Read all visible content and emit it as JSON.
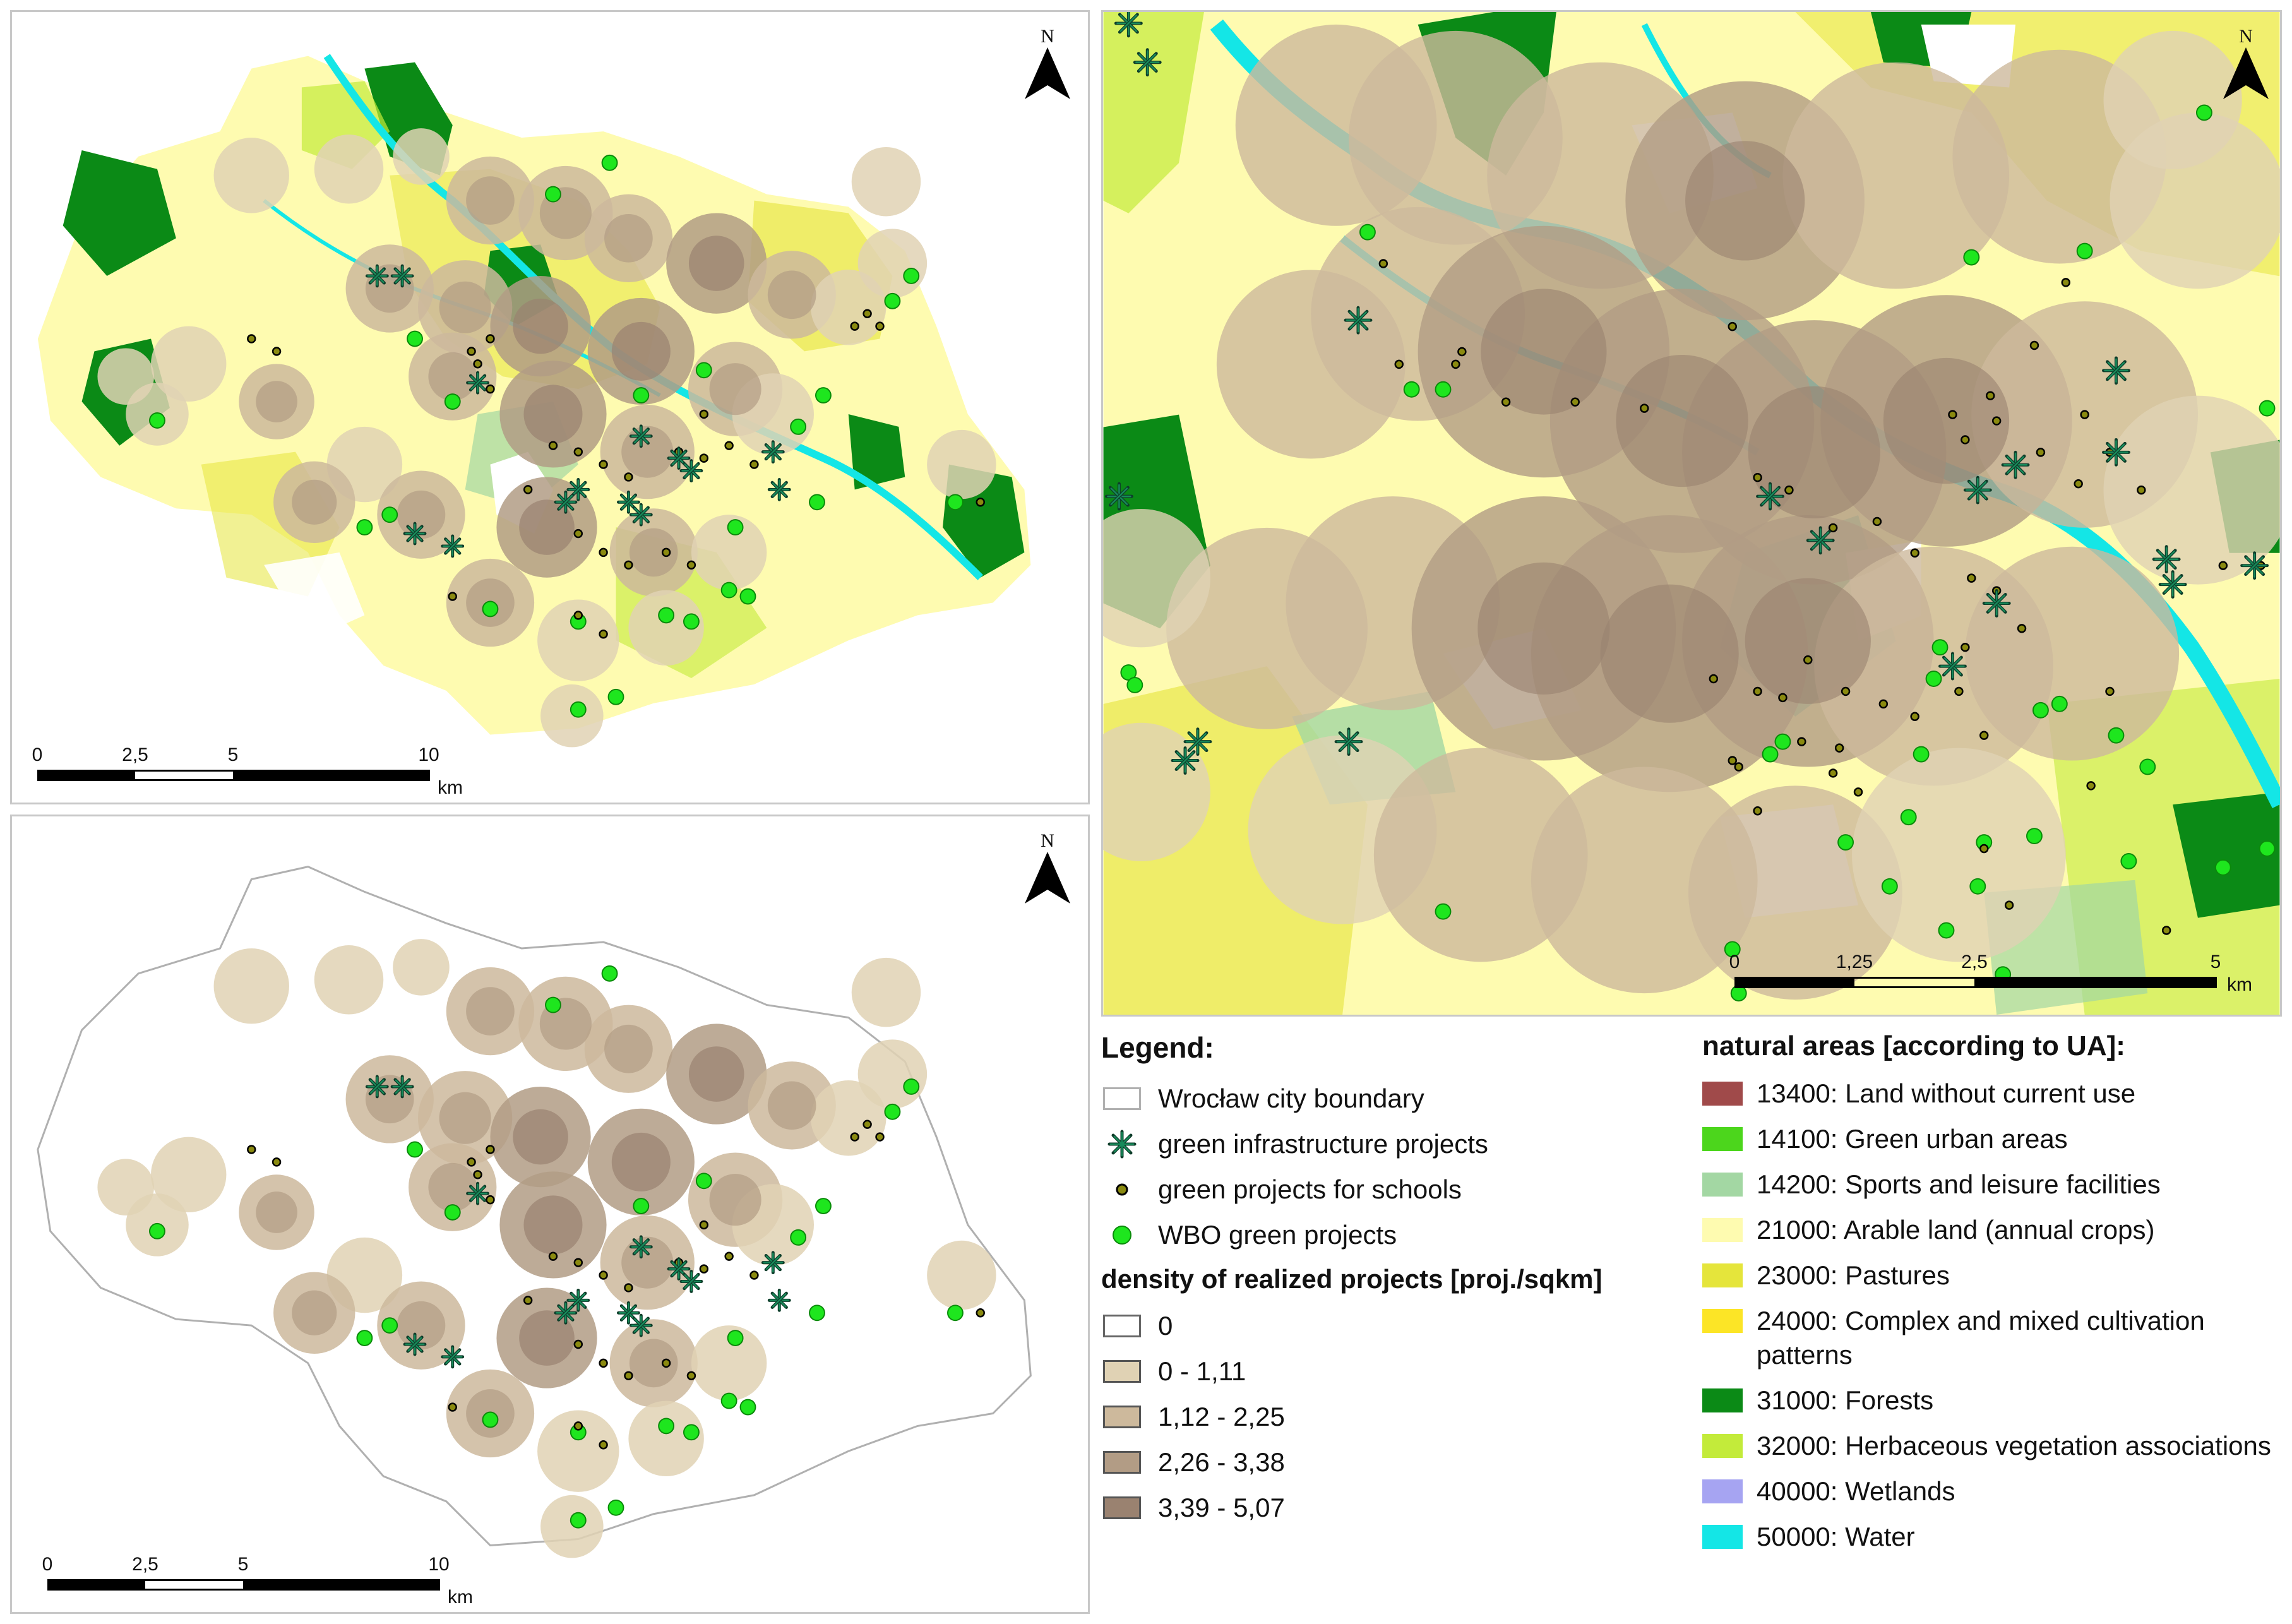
{
  "legend": {
    "title": "Legend:",
    "items": {
      "boundary": "Wrocław city boundary",
      "gi": "green infrastructure projects",
      "schools": "green projects for schools",
      "wbo": "WBO green projects"
    },
    "density_title": "density of realized projects [proj./sqkm]",
    "density_classes": [
      "0",
      "0 - 1,11",
      "1,12 - 2,25",
      "2,26 - 3,38",
      "3,39 - 5,07"
    ],
    "density_colors": [
      "#ffffff",
      "#e0d2b4",
      "#cdb99c",
      "#b29c85",
      "#9a8270"
    ]
  },
  "ua_legend": {
    "title": "natural areas [according to UA]:",
    "classes": [
      {
        "label": "13400: Land without current use",
        "color": "#a04a4a"
      },
      {
        "label": "14100: Green urban areas",
        "color": "#4cd61c"
      },
      {
        "label": "14200: Sports and leisure facilities",
        "color": "#a3d7a3"
      },
      {
        "label": "21000: Arable land (annual crops)",
        "color": "#fefbb0"
      },
      {
        "label": "23000: Pastures",
        "color": "#e5e53b"
      },
      {
        "label": "24000: Complex and mixed cultivation patterns",
        "color": "#fce526"
      },
      {
        "label": "31000: Forests",
        "color": "#0b8a16"
      },
      {
        "label": "32000: Herbaceous vegetation associations",
        "color": "#c3eb3a"
      },
      {
        "label": "40000: Wetlands",
        "color": "#a6a4f2"
      },
      {
        "label": "50000: Water",
        "color": "#14e6e6"
      }
    ]
  },
  "maps": {
    "north_label": "N",
    "scale_city": {
      "labels": [
        "0",
        "2,5",
        "5",
        "10"
      ],
      "unit": "km"
    },
    "scale_zoom": {
      "labels": [
        "0",
        "1,25",
        "2,5",
        "5"
      ],
      "unit": "km"
    }
  },
  "colors": {
    "water": "#14e6e6",
    "forest": "#0b8a16",
    "arable": "#fefbb0",
    "pasture": "#e5e53b",
    "herb": "#c3eb3a",
    "sports": "#a3d7a3",
    "wbo_point": "#1ee61e",
    "school_point": "#8a8a10",
    "gi_point": "#0e5a3a",
    "boundary_line": "#b0b0b0"
  }
}
